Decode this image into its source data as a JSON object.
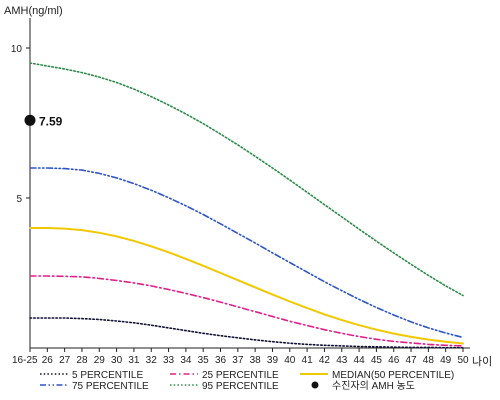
{
  "chart_data": {
    "type": "line",
    "ylabel": "AMH(ng/ml)",
    "xlabel": "나이",
    "ylim": [
      0,
      11
    ],
    "y_ticks": [
      "5",
      "10"
    ],
    "x_ticks": [
      "16-25",
      "26",
      "27",
      "28",
      "29",
      "30",
      "31",
      "32",
      "33",
      "34",
      "35",
      "36",
      "37",
      "38",
      "39",
      "40",
      "41",
      "42",
      "43",
      "44",
      "45",
      "46",
      "47",
      "48",
      "49",
      "50"
    ],
    "x": [
      25,
      26,
      27,
      28,
      29,
      30,
      31,
      32,
      33,
      34,
      35,
      36,
      37,
      38,
      39,
      40,
      41,
      42,
      43,
      44,
      45,
      46,
      47,
      48,
      49,
      50
    ],
    "series": [
      {
        "name": "5 PERCENTILE",
        "color": "#111133",
        "dash": "dot",
        "values": [
          1.0,
          1.0,
          1.0,
          0.98,
          0.95,
          0.9,
          0.84,
          0.76,
          0.67,
          0.58,
          0.49,
          0.41,
          0.34,
          0.27,
          0.21,
          0.16,
          0.12,
          0.09,
          0.07,
          0.05,
          0.04,
          0.03,
          0.02,
          0.02,
          0.01,
          0.01
        ]
      },
      {
        "name": "25 PERCENTILE",
        "color": "#e0208a",
        "dash": "dashdot",
        "values": [
          2.4,
          2.4,
          2.39,
          2.37,
          2.32,
          2.25,
          2.17,
          2.07,
          1.95,
          1.82,
          1.68,
          1.53,
          1.37,
          1.21,
          1.05,
          0.89,
          0.75,
          0.61,
          0.49,
          0.38,
          0.29,
          0.22,
          0.17,
          0.12,
          0.09,
          0.07
        ]
      },
      {
        "name": "MEDIAN(50 PERCENTILE)",
        "color": "#f2c700",
        "dash": "solid",
        "values": [
          4.0,
          4.0,
          3.98,
          3.93,
          3.84,
          3.72,
          3.57,
          3.39,
          3.19,
          2.97,
          2.74,
          2.5,
          2.26,
          2.02,
          1.78,
          1.55,
          1.33,
          1.12,
          0.93,
          0.76,
          0.61,
          0.48,
          0.37,
          0.28,
          0.21,
          0.15
        ]
      },
      {
        "name": "75 PERCENTILE",
        "color": "#2e55c8",
        "dash": "dashdotdot",
        "values": [
          6.0,
          6.0,
          5.98,
          5.93,
          5.82,
          5.67,
          5.48,
          5.26,
          5.01,
          4.74,
          4.45,
          4.14,
          3.82,
          3.5,
          3.17,
          2.85,
          2.53,
          2.21,
          1.91,
          1.62,
          1.35,
          1.1,
          0.87,
          0.67,
          0.5,
          0.35
        ]
      },
      {
        "name": "95 PERCENTILE",
        "color": "#2e8b4a",
        "dash": "dot",
        "values": [
          9.5,
          9.4,
          9.3,
          9.18,
          9.03,
          8.85,
          8.63,
          8.38,
          8.1,
          7.8,
          7.48,
          7.13,
          6.77,
          6.39,
          6.0,
          5.6,
          5.19,
          4.78,
          4.37,
          3.96,
          3.56,
          3.17,
          2.79,
          2.42,
          2.07,
          1.75
        ]
      }
    ],
    "patient": {
      "name": "수진자의 AMH 농도",
      "value": 7.59,
      "label": "7.59",
      "x": 25,
      "color": "#111111"
    },
    "legend_position": "bottom",
    "grid": false
  }
}
